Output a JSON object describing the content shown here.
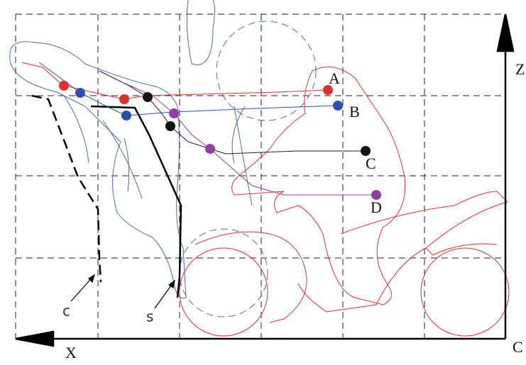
{
  "axes": {
    "vertical": "Z",
    "horizontal": "X",
    "origin": "C"
  },
  "trajectories": [
    {
      "label": "A"
    },
    {
      "label": "B"
    },
    {
      "label": "C"
    },
    {
      "label": "D"
    }
  ],
  "curves": [
    {
      "label": "c"
    },
    {
      "label": "s"
    }
  ]
}
